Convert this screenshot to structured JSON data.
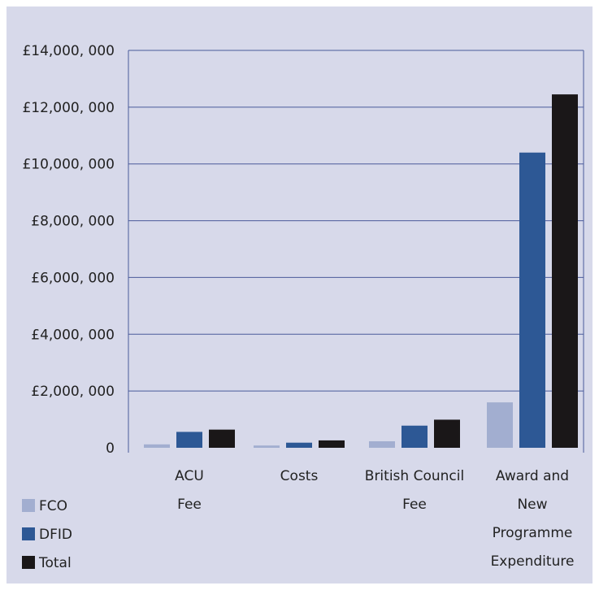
{
  "colors": {
    "background": "#d7d9ea",
    "gridline": "#4a5a9a",
    "FCO": "#a2aed0",
    "DFID": "#2d5895",
    "Total": "#1a1718"
  },
  "legend": {
    "items": [
      {
        "name": "FCO",
        "color": "#a2aed0"
      },
      {
        "name": "DFID",
        "color": "#2d5895"
      },
      {
        "name": "Total",
        "color": "#1a1718"
      }
    ],
    "placement": "bottom-left"
  },
  "chart_data": {
    "type": "bar",
    "title": "",
    "xlabel": "",
    "ylabel": "",
    "ylim": [
      0,
      14000000
    ],
    "y_ticks": [
      0,
      2000000,
      4000000,
      6000000,
      8000000,
      10000000,
      12000000,
      14000000
    ],
    "y_tick_labels": [
      "0",
      "£2,000, 000",
      "£4,000, 000",
      "£6,000, 000",
      "£8,000, 000",
      "£10,000, 000",
      "£12,000, 000",
      "£14,000, 000"
    ],
    "grid": true,
    "categories": [
      [
        "ACU",
        "Fee"
      ],
      [
        "Costs"
      ],
      [
        "British Council",
        "Fee"
      ],
      [
        "Award and",
        "New",
        "Programme",
        "Expenditure"
      ]
    ],
    "series": [
      {
        "name": "FCO",
        "values": [
          120000,
          80000,
          230000,
          1600000
        ]
      },
      {
        "name": "DFID",
        "values": [
          560000,
          180000,
          780000,
          10400000
        ]
      },
      {
        "name": "Total",
        "values": [
          640000,
          260000,
          990000,
          12450000
        ]
      }
    ]
  }
}
